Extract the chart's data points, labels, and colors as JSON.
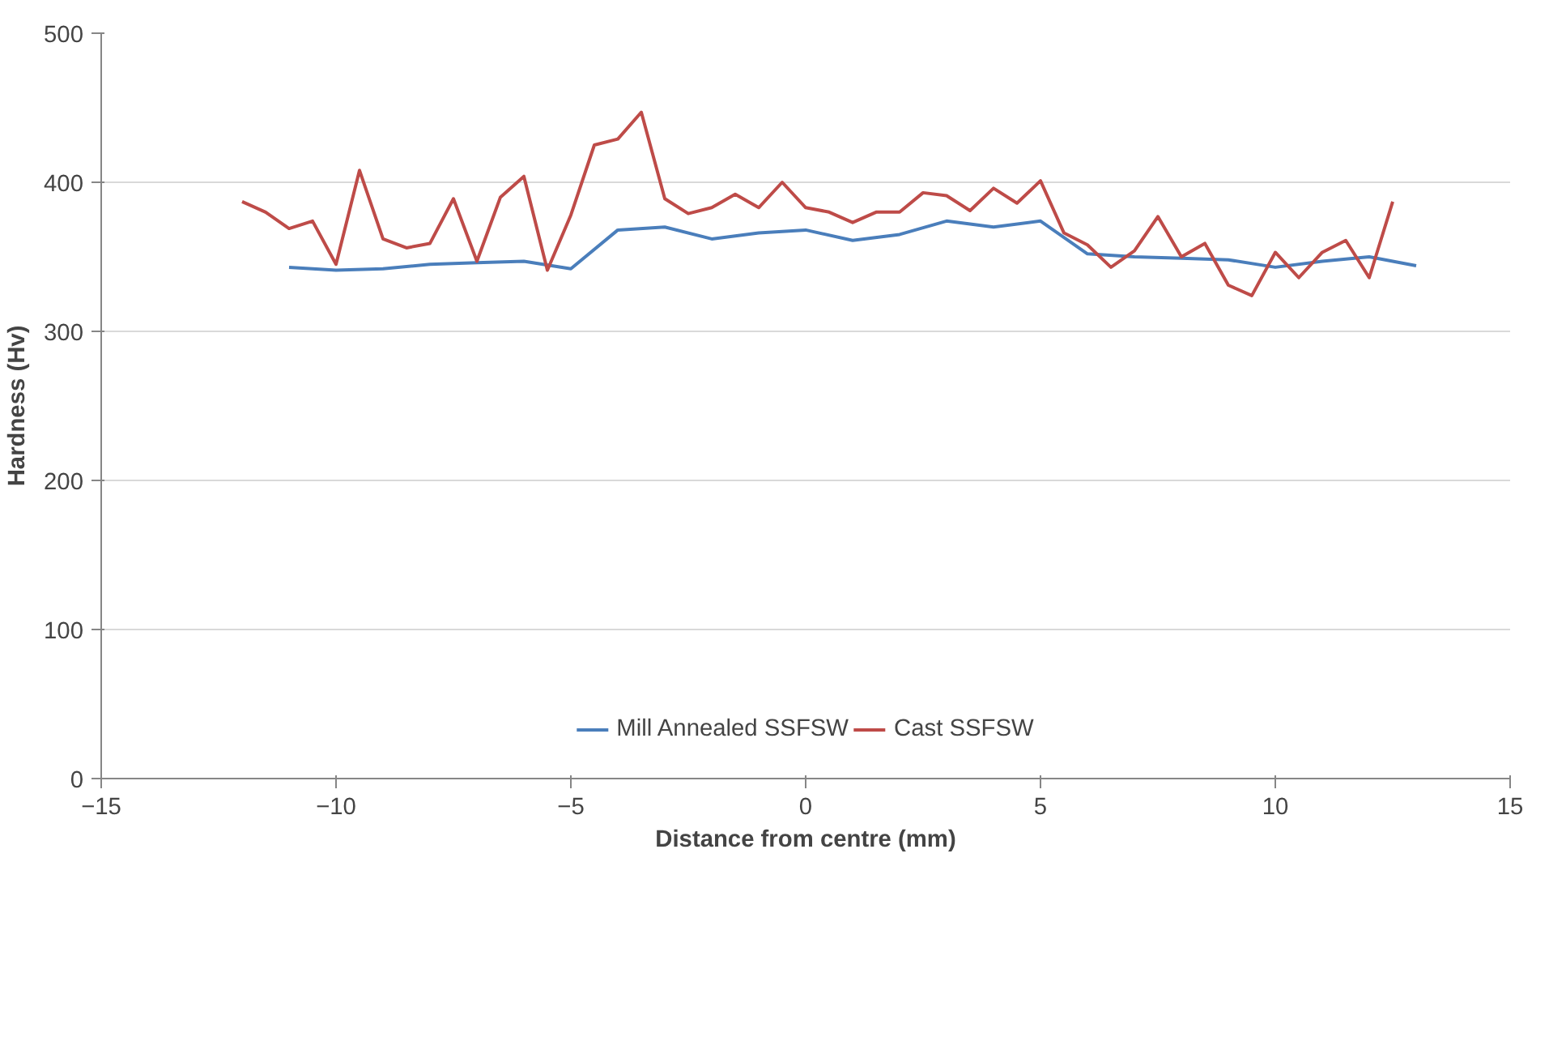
{
  "chart_data": {
    "type": "line",
    "xlabel": "Distance from centre (mm)",
    "ylabel": "Hardness (Hv)",
    "xlim": [
      -15,
      15
    ],
    "xticks": [
      -15,
      -10,
      -5,
      0,
      5,
      10,
      15
    ],
    "ylim": [
      0,
      500
    ],
    "yticks": [
      0,
      100,
      200,
      300,
      400,
      500
    ],
    "grid": "y",
    "legend": "bottom",
    "marker": "none",
    "line_style": "solid",
    "series": [
      {
        "name": "Mill Annealed SSFSW",
        "color": "#4a7ebb",
        "x": [
          -11,
          -10,
          -9,
          -8,
          -7,
          -6,
          -5,
          -4,
          -3,
          -2,
          -1,
          0,
          1,
          2,
          3,
          4,
          5,
          6,
          7,
          8,
          9,
          10,
          11,
          12,
          13
        ],
        "values": [
          343,
          341,
          342,
          345,
          346,
          347,
          342,
          368,
          370,
          362,
          366,
          368,
          361,
          365,
          374,
          370,
          374,
          352,
          350,
          349,
          348,
          343,
          347,
          350,
          344
        ]
      },
      {
        "name": "Cast SSFSW",
        "color": "#be4b48",
        "x": [
          -12,
          -11.5,
          -11,
          -10.5,
          -10,
          -9.5,
          -9,
          -8.5,
          -8,
          -7.5,
          -7,
          -6.5,
          -6,
          -5.5,
          -5,
          -4.5,
          -4,
          -3.5,
          -3,
          -2.5,
          -2,
          -1.5,
          -1,
          -0.5,
          0,
          0.5,
          1,
          1.5,
          2,
          2.5,
          3,
          3.5,
          4,
          4.5,
          5,
          5.5,
          6,
          6.5,
          7,
          7.5,
          8,
          8.5,
          9,
          9.5,
          10,
          10.5,
          11,
          11.5,
          12,
          12.5
        ],
        "values": [
          387,
          380,
          369,
          374,
          345,
          408,
          362,
          356,
          359,
          389,
          347,
          390,
          404,
          341,
          378,
          425,
          429,
          447,
          389,
          379,
          383,
          392,
          383,
          400,
          383,
          380,
          373,
          380,
          380,
          393,
          391,
          381,
          396,
          386,
          401,
          366,
          358,
          343,
          354,
          377,
          350,
          359,
          331,
          324,
          353,
          336,
          353,
          361,
          336,
          387
        ]
      }
    ]
  }
}
